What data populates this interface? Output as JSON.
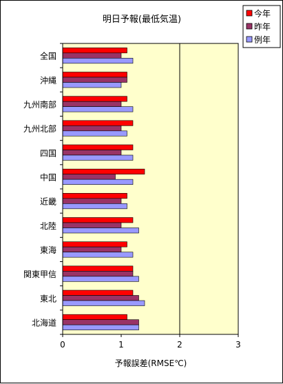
{
  "chart_data": {
    "type": "bar",
    "orientation": "horizontal",
    "title": "明日予報(最低気温)",
    "xlabel": "予報誤差(RMSE℃)",
    "ylabel": "",
    "xlim": [
      0,
      3
    ],
    "x_ticks": [
      0,
      1,
      2,
      3
    ],
    "grid": "vertical lines at 2",
    "legend_position": "top-right",
    "categories": [
      "全国",
      "沖縄",
      "九州南部",
      "九州北部",
      "四国",
      "中国",
      "近畿",
      "北陸",
      "東海",
      "関東甲信",
      "東北",
      "北海道"
    ],
    "series": [
      {
        "name": "今年",
        "color": "#ff0000",
        "values": [
          1.1,
          1.1,
          1.1,
          1.2,
          1.2,
          1.4,
          1.1,
          1.2,
          1.1,
          1.2,
          1.2,
          1.1
        ]
      },
      {
        "name": "昨年",
        "color": "#993366",
        "values": [
          1.0,
          1.1,
          1.0,
          1.0,
          1.0,
          0.9,
          1.0,
          1.0,
          1.0,
          1.2,
          1.3,
          1.3
        ]
      },
      {
        "name": "例年",
        "color": "#9999ff",
        "values": [
          1.2,
          1.0,
          1.2,
          1.1,
          1.2,
          1.2,
          1.1,
          1.3,
          1.2,
          1.3,
          1.4,
          1.3
        ]
      }
    ],
    "colors": {
      "plot_background": "#ffffcc",
      "border": "#000000",
      "gridline": "#000000"
    }
  }
}
